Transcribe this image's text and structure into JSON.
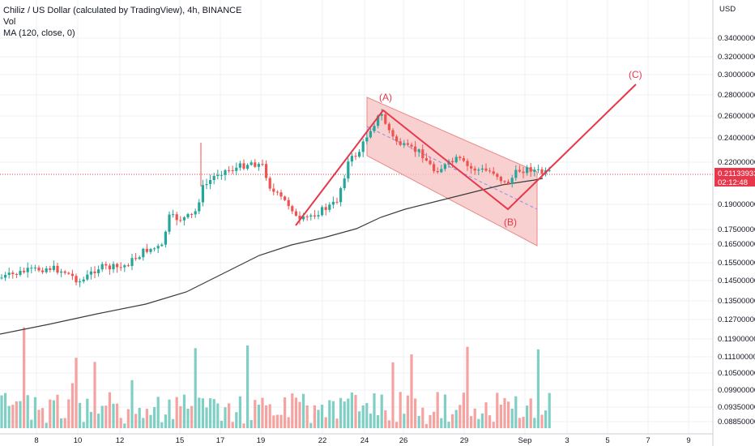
{
  "legend": {
    "title": "Chiliz / US Dollar (calculated by TradingView), 4h, BINANCE",
    "volume": "Vol",
    "ma": "MA (120, close, 0)"
  },
  "price_axis": {
    "currency": "USD",
    "ticks": [
      "0.34000000",
      "0.32000000",
      "0.30000000",
      "0.28000000",
      "0.26000000",
      "0.24000000",
      "0.22000000",
      "0.21133933",
      "02:12:48",
      "0.19000000",
      "0.17500000",
      "0.16500000",
      "0.15500000",
      "0.14500000",
      "0.13500000",
      "0.12700000",
      "0.11900000",
      "0.11100000",
      "0.10500000",
      "0.09900000",
      "0.09350000",
      "0.08850000"
    ]
  },
  "time_axis": {
    "ticks": [
      "8",
      "10",
      "12",
      "15",
      "17",
      "19",
      "22",
      "24",
      "26",
      "29",
      "Sep",
      "3",
      "5",
      "7",
      "9"
    ]
  },
  "current_price": {
    "value": "0.21133933",
    "countdown": "02:12:48",
    "color": "#e8374b"
  },
  "annotations": {
    "wave_a": "(A)",
    "wave_b": "(B)",
    "wave_c": "(C)"
  },
  "colors": {
    "up": "#26a69a",
    "down": "#ef5350",
    "vol_up": "#7fcfc5",
    "vol_down": "#f5a3a0",
    "ma": "#3c3c3c",
    "wave": "#e8374b",
    "channel_fill": "#f8c4c4",
    "grid": "#eef0f3"
  },
  "chart_data": {
    "type": "candlestick",
    "symbol": "Chiliz / US Dollar",
    "interval": "4h",
    "exchange": "BINANCE",
    "last_price": 0.21133933,
    "indicators": [
      "Vol",
      "MA (120, close, 0)"
    ],
    "waves": [
      {
        "label": "(A)",
        "from": "21",
        "to": "25"
      },
      {
        "label": "(B)",
        "from": "25",
        "to": "Aug 31"
      },
      {
        "label": "(C)",
        "from": "Aug 31",
        "to": "Sep 6"
      }
    ]
  }
}
